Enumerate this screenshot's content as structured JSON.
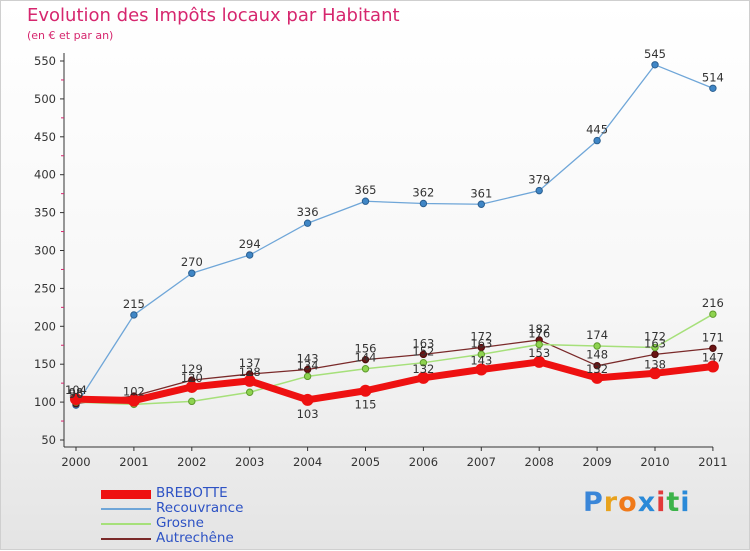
{
  "header": {
    "title": "Evolution des Impôts locaux par Habitant",
    "subtitle": "(en € et par an)"
  },
  "logo": {
    "text": "Proxiti",
    "letters": [
      "P",
      "r",
      "o",
      "x",
      "i",
      "t",
      "i"
    ],
    "colors": [
      "#3a86d8",
      "#e8a21c",
      "#f07a1a",
      "#2a8ad8",
      "#e23a3a",
      "#3cb34a",
      "#2a8ad8"
    ]
  },
  "chart_data": {
    "type": "line",
    "title": "Evolution des Impôts locaux par Habitant",
    "subtitle": "(en € et par an)",
    "xlabel": "",
    "ylabel": "",
    "ylim": [
      50,
      550
    ],
    "yticks": [
      50,
      100,
      150,
      200,
      250,
      300,
      350,
      400,
      450,
      500,
      550
    ],
    "grid": false,
    "legend_position": "bottom-left",
    "categories": [
      "2000",
      "2001",
      "2002",
      "2003",
      "2004",
      "2005",
      "2006",
      "2007",
      "2008",
      "2009",
      "2010",
      "2011"
    ],
    "series": [
      {
        "name": "BREBOTTE",
        "color": "#ee1111",
        "values": [
          104,
          102,
          120,
          128,
          103,
          115,
          132,
          143,
          153,
          132,
          138,
          147
        ],
        "labels": [
          "104",
          "102",
          "120",
          "128",
          "103",
          "115",
          "132",
          "143",
          "153",
          "132",
          "138",
          "147"
        ]
      },
      {
        "name": "Recouvrance",
        "color": "#6fa6d8",
        "values": [
          96,
          215,
          270,
          294,
          336,
          365,
          362,
          361,
          379,
          445,
          545,
          514
        ],
        "labels": [
          "96",
          "215",
          "270",
          "294",
          "336",
          "365",
          "362",
          "361",
          "379",
          "445",
          "545",
          "514"
        ]
      },
      {
        "name": "Grosne",
        "color": "#a6e07a",
        "values": [
          100,
          97,
          101,
          113,
          134,
          144,
          152,
          163,
          176,
          174,
          172,
          216
        ],
        "labels": [
          "",
          "",
          "",
          "",
          "134",
          "144",
          "152",
          "163",
          "176",
          "174",
          "172",
          "216"
        ]
      },
      {
        "name": "Autrechêne",
        "color": "#7a2a2a",
        "values": [
          98,
          108,
          129,
          137,
          143,
          156,
          163,
          172,
          182,
          148,
          163,
          171
        ],
        "labels": [
          "98",
          "",
          "129",
          "137",
          "143",
          "156",
          "163",
          "172",
          "182",
          "148",
          "163",
          "171"
        ]
      }
    ]
  }
}
